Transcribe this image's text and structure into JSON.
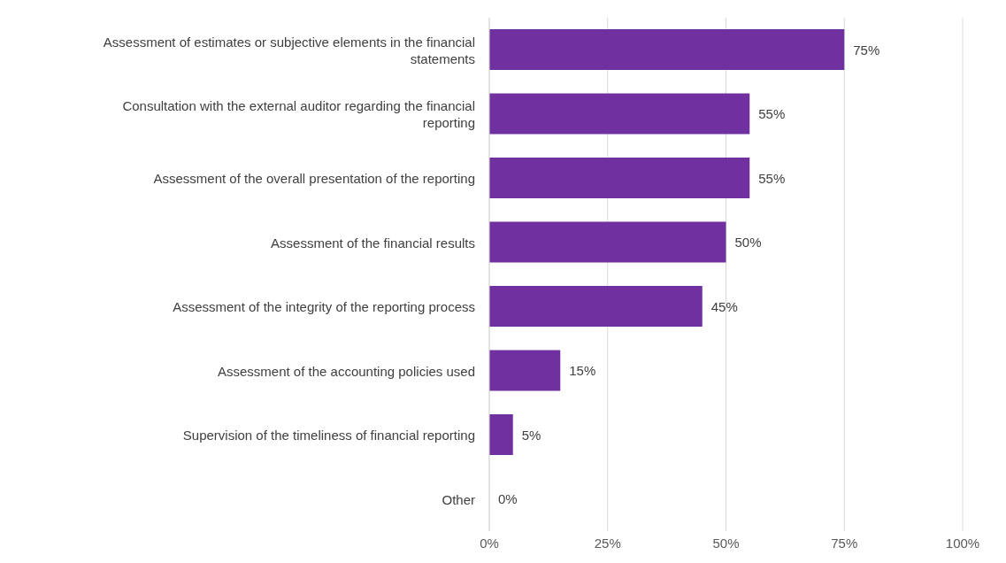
{
  "chart_data": {
    "type": "bar",
    "orientation": "horizontal",
    "categories": [
      "Assessment of estimates or subjective elements in the financial statements",
      "Consultation with the external auditor regarding the financial reporting",
      "Assessment of the overall presentation of the reporting",
      "Assessment of the financial results",
      "Assessment of the integrity of the reporting process",
      "Assessment of the accounting policies used",
      "Supervision of the timeliness of financial reporting",
      "Other"
    ],
    "values": [
      75,
      55,
      55,
      50,
      45,
      15,
      5,
      0
    ],
    "value_labels": [
      "75%",
      "55%",
      "55%",
      "50%",
      "45%",
      "15%",
      "5%",
      "0%"
    ],
    "color": "#7030a0",
    "xlim": [
      0,
      100
    ],
    "xticks": [
      {
        "value": 0,
        "label": "0%"
      },
      {
        "value": 25,
        "label": "25%"
      },
      {
        "value": 50,
        "label": "50%"
      },
      {
        "value": 75,
        "label": "75%"
      },
      {
        "value": 100,
        "label": "100%"
      }
    ],
    "grid": "x",
    "legend": false
  }
}
